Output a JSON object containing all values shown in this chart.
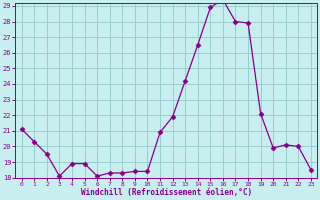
{
  "x": [
    0,
    1,
    2,
    3,
    4,
    5,
    6,
    7,
    8,
    9,
    10,
    11,
    12,
    13,
    14,
    15,
    16,
    17,
    18,
    19,
    20,
    21,
    22,
    23
  ],
  "y": [
    21.1,
    20.3,
    19.5,
    18.1,
    18.9,
    18.9,
    18.1,
    18.3,
    18.3,
    18.4,
    18.4,
    20.9,
    21.9,
    24.2,
    26.5,
    28.9,
    29.4,
    28.0,
    27.9,
    22.1,
    19.9,
    20.1,
    20.0,
    18.5
  ],
  "line_color": "#880088",
  "marker": "D",
  "marker_size": 2.5,
  "bg_color": "#c8eef0",
  "grid_color": "#99cccc",
  "xlabel": "Windchill (Refroidissement éolien,°C)",
  "xlabel_color": "#880088",
  "tick_color": "#880088",
  "ylim": [
    18,
    29
  ],
  "xlim": [
    -0.5,
    23.5
  ],
  "yticks": [
    18,
    19,
    20,
    21,
    22,
    23,
    24,
    25,
    26,
    27,
    28,
    29
  ],
  "xticks": [
    0,
    1,
    2,
    3,
    4,
    5,
    6,
    7,
    8,
    9,
    10,
    11,
    12,
    13,
    14,
    15,
    16,
    17,
    18,
    19,
    20,
    21,
    22,
    23
  ]
}
